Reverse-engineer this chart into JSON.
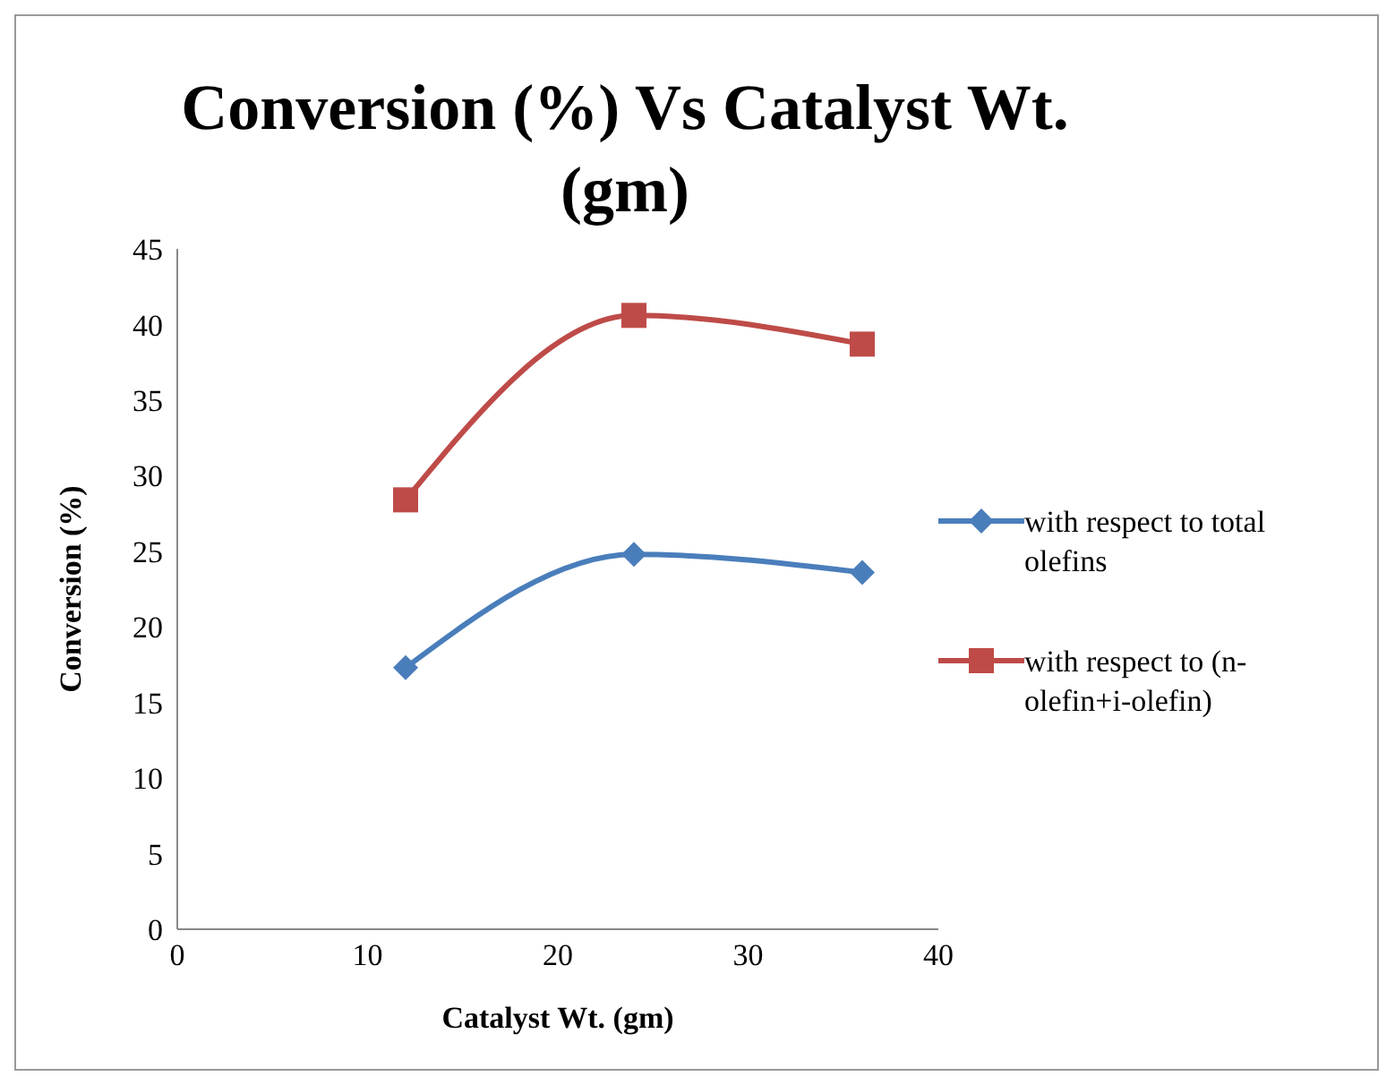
{
  "chart_data": {
    "type": "line",
    "title": "Conversion  (%) Vs Catalyst Wt. (gm)",
    "xlabel": "Catalyst  Wt. (gm)",
    "ylabel": "Conversion  (%)",
    "x": [
      12,
      24,
      36
    ],
    "series": [
      {
        "name": "with respect to total olefins",
        "color": "#4a7ebb",
        "values": [
          17.3,
          24.8,
          23.6
        ],
        "marker": "diamond"
      },
      {
        "name": "with respect to (n-olefin+i-olefin)",
        "color": "#be4b48",
        "values": [
          28.4,
          40.6,
          38.7
        ],
        "marker": "square"
      }
    ],
    "xlim": [
      0,
      40
    ],
    "xticks": [
      0,
      10,
      20,
      30,
      40
    ],
    "ylim": [
      0,
      45
    ],
    "yticks": [
      0,
      5,
      10,
      15,
      20,
      25,
      30,
      35,
      40,
      45
    ],
    "grid": false,
    "legend": "right"
  }
}
